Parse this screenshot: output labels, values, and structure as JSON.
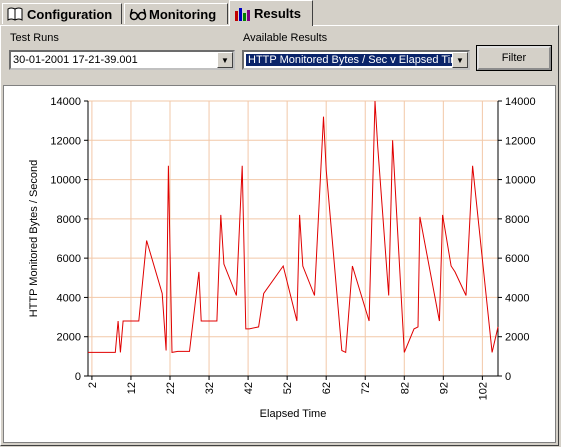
{
  "tabs": [
    {
      "label": "Configuration",
      "icon": "book-icon"
    },
    {
      "label": "Monitoring",
      "icon": "glasses-icon"
    },
    {
      "label": "Results",
      "icon": "bar-chart-icon"
    }
  ],
  "controls": {
    "test_runs_label": "Test Runs",
    "test_runs_value": "30-01-2001 17-21-39.001",
    "available_results_label": "Available Results",
    "available_results_value": "HTTP Monitored Bytes / Sec v Elapsed Tir",
    "filter_label": "Filter"
  },
  "chart_data": {
    "type": "line",
    "xlabel": "Elapsed Time",
    "ylabel": "HTTP Monitored Bytes / Second",
    "ylim": [
      0,
      14000
    ],
    "xlim": [
      1,
      106
    ],
    "y_ticks": [
      0,
      2000,
      4000,
      6000,
      8000,
      10000,
      12000,
      14000
    ],
    "x_ticks": [
      2,
      12,
      22,
      32,
      42,
      52,
      62,
      72,
      82,
      92,
      102
    ],
    "grid": true,
    "line_color": "#e00000",
    "grid_color": "#f2c8a8",
    "x": [
      1,
      8,
      8.7,
      9.3,
      10,
      12,
      14,
      16,
      20,
      21,
      21.6,
      22.5,
      24,
      27,
      29.4,
      30,
      31,
      34,
      35,
      35.8,
      39,
      40.5,
      41.4,
      42.3,
      44.7,
      46,
      51,
      54.5,
      55.2,
      56,
      59,
      61.3,
      62,
      66,
      67,
      68.7,
      73,
      74.5,
      75.2,
      78,
      79,
      82,
      84.5,
      85.5,
      86,
      91,
      91.8,
      94,
      95,
      97.8,
      99.5,
      104.5,
      106
    ],
    "y": [
      1200,
      1200,
      2800,
      1200,
      2800,
      2800,
      2800,
      6900,
      4200,
      1300,
      10700,
      1200,
      1250,
      1250,
      5300,
      2800,
      2800,
      2800,
      8200,
      5700,
      4100,
      10700,
      2400,
      2400,
      2500,
      4200,
      5600,
      2800,
      8200,
      5600,
      4100,
      13200,
      10500,
      1300,
      1200,
      5600,
      2800,
      14000,
      11700,
      4100,
      12000,
      1200,
      2400,
      2500,
      8100,
      2800,
      8200,
      5600,
      5300,
      4100,
      10700,
      1200,
      2500
    ]
  }
}
